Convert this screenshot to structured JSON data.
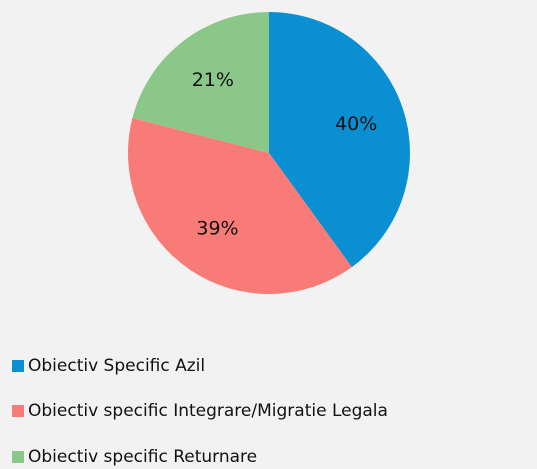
{
  "chart_data": {
    "type": "pie",
    "categories": [
      "Obiectiv Specific Azil",
      "Obiectiv specific Integrare/Migratie Legala",
      "Obiectiv specific Returnare"
    ],
    "values": [
      40,
      39,
      21
    ],
    "value_labels": [
      "40%",
      "39%",
      "21%"
    ],
    "colors": [
      "#0b8fd3",
      "#f97b77",
      "#8cc78a"
    ],
    "legend": "bottom"
  }
}
